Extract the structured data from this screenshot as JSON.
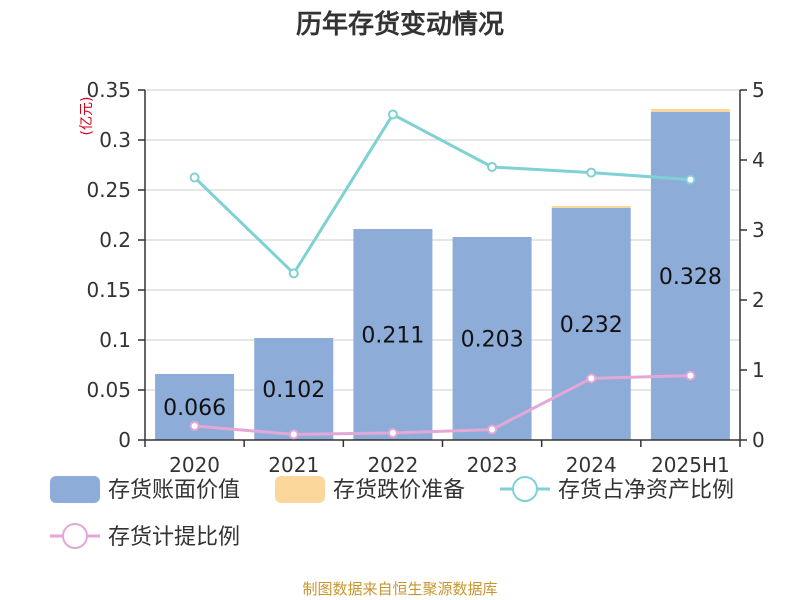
{
  "chart_data": {
    "type": "bar",
    "title": "历年存货变动情况",
    "unit_label": "(亿元)",
    "categories": [
      "2020",
      "2021",
      "2022",
      "2023",
      "2024",
      "2025H1"
    ],
    "bar_labels": [
      "0.066",
      "0.102",
      "0.211",
      "0.203",
      "0.232",
      "0.328"
    ],
    "series": [
      {
        "name": "存货账面价值",
        "kind": "bar",
        "axis": "left",
        "color": "#8eacd8",
        "values": [
          0.066,
          0.102,
          0.211,
          0.203,
          0.232,
          0.328
        ]
      },
      {
        "name": "存货跌价准备",
        "kind": "bar",
        "axis": "left",
        "color": "#fcd79b",
        "values": [
          0,
          0,
          0,
          0,
          0.002,
          0.003
        ]
      },
      {
        "name": "存货占净资产比例",
        "kind": "line",
        "axis": "right",
        "color": "#7fd1d4",
        "values": [
          3.75,
          2.38,
          4.65,
          3.9,
          3.82,
          3.72
        ]
      },
      {
        "name": "存货计提比例",
        "kind": "line",
        "axis": "right",
        "color": "#e3a8d7",
        "values": [
          0.2,
          0.08,
          0.1,
          0.15,
          0.88,
          0.92
        ]
      }
    ],
    "y_left": {
      "min": 0,
      "max": 0.35,
      "ticks": [
        0,
        0.05,
        0.1,
        0.15,
        0.2,
        0.25,
        0.3,
        0.35
      ],
      "tick_labels": [
        "0",
        "0.05",
        "0.1",
        "0.15",
        "0.2",
        "0.25",
        "0.3",
        "0.35"
      ]
    },
    "y_right": {
      "min": 0,
      "max": 5,
      "ticks": [
        0,
        1,
        2,
        3,
        4,
        5
      ],
      "tick_labels": [
        "0",
        "1",
        "2",
        "3",
        "4",
        "5"
      ]
    },
    "grid": true,
    "legend_position": "bottom",
    "source": "制图数据来自恒生聚源数据库"
  }
}
